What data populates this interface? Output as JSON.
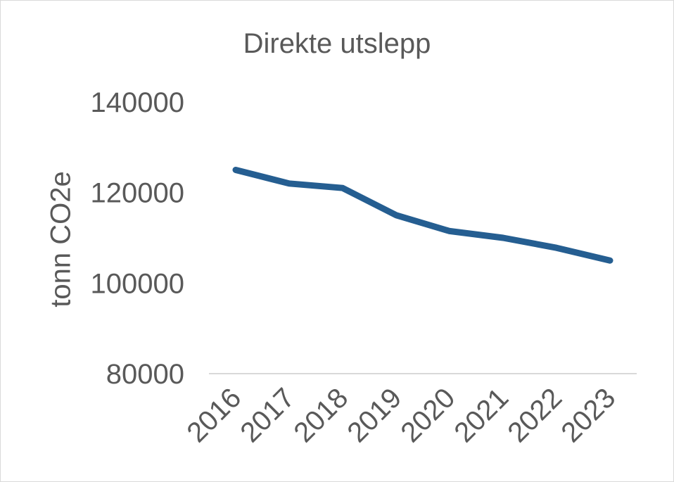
{
  "chart_data": {
    "type": "line",
    "title": "Direkte utslepp",
    "xlabel": "",
    "ylabel": "tonn CO2e",
    "categories": [
      "2016",
      "2017",
      "2018",
      "2019",
      "2020",
      "2021",
      "2022",
      "2023"
    ],
    "series": [
      {
        "values": [
          125000,
          122000,
          121000,
          115000,
          111500,
          110000,
          107800,
          105000
        ],
        "color": "#255E91"
      }
    ],
    "ylim": [
      80000,
      140000
    ],
    "yticks": [
      "80000",
      "100000",
      "120000",
      "140000"
    ],
    "grid": false,
    "legend": "none"
  },
  "colors": {
    "text": "#595959",
    "axis": "#d9d9d9",
    "border": "#d9d9d9"
  }
}
